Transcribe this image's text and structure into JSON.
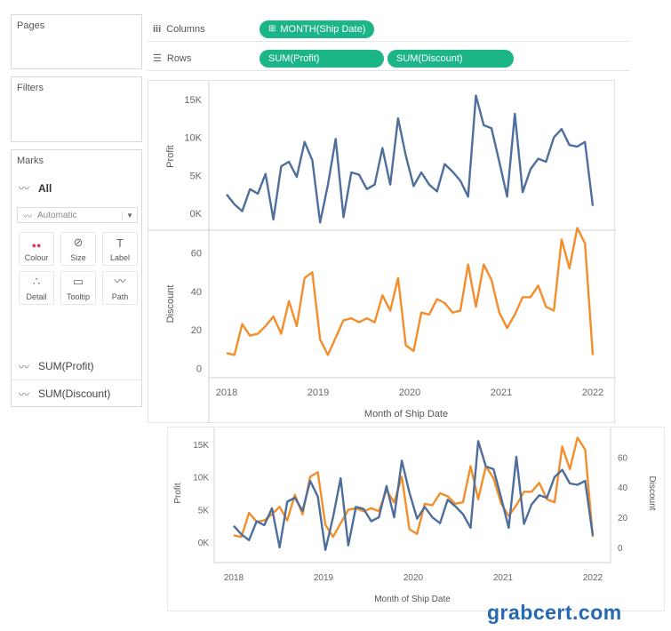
{
  "panels": {
    "pages": "Pages",
    "filters": "Filters",
    "marks": "Marks"
  },
  "shelves": {
    "columns_label": "Columns",
    "rows_label": "Rows",
    "columns_pills": [
      "MONTH(Ship Date)"
    ],
    "rows_pills": [
      "SUM(Profit)",
      "SUM(Discount)"
    ]
  },
  "marks_card": {
    "all_label": "All",
    "mark_type": "Automatic",
    "buttons": [
      {
        "label": "Colour",
        "icon": "colour-icon"
      },
      {
        "label": "Size",
        "icon": "size-icon"
      },
      {
        "label": "Label",
        "icon": "label-icon"
      },
      {
        "label": "Detail",
        "icon": "detail-icon"
      },
      {
        "label": "Tooltip",
        "icon": "tooltip-icon"
      },
      {
        "label": "Path",
        "icon": "path-icon"
      }
    ],
    "measures": [
      "SUM(Profit)",
      "SUM(Discount)"
    ]
  },
  "colors": {
    "profit": "#4e6e9c",
    "discount": "#f28e2b",
    "pill": "#1bb587",
    "watermark": "#2569b3"
  },
  "chart_data": [
    {
      "type": "line",
      "layout": "separate axes (stacked)",
      "xlabel": "Month of Ship Date",
      "x_ticks": [
        "2018",
        "2019",
        "2020",
        "2021",
        "2022"
      ],
      "series": [
        {
          "name": "Profit",
          "ylabel": "Profit",
          "y_ticks": [
            "0K",
            "5K",
            "10K",
            "15K"
          ],
          "ylim": [
            -1500,
            16500
          ],
          "values": [
            2500,
            1200,
            300,
            3200,
            2600,
            5200,
            -800,
            6200,
            6800,
            4800,
            9400,
            7000,
            -1200,
            3800,
            9800,
            -500,
            5400,
            5100,
            3200,
            3800,
            8600,
            3800,
            12500,
            7600,
            3600,
            5400,
            3800,
            2900,
            6500,
            5500,
            4300,
            2200,
            15500,
            11600,
            11200,
            6800,
            2200,
            13100,
            2800,
            5800,
            7200,
            6800,
            10000,
            11100,
            9000,
            8800,
            9400,
            1000
          ]
        },
        {
          "name": "Discount",
          "ylabel": "Discount",
          "y_ticks": [
            "0",
            "20",
            "40",
            "60"
          ],
          "ylim": [
            -3,
            70
          ],
          "values": [
            8,
            7,
            23,
            17,
            18,
            22,
            27,
            18,
            35,
            22,
            47,
            50,
            15,
            7,
            16,
            25,
            26,
            24,
            26,
            24,
            38,
            30,
            47,
            12,
            9,
            29,
            28,
            36,
            34,
            29,
            30,
            54,
            32,
            54,
            46,
            29,
            21,
            28,
            37,
            37,
            43,
            32,
            30,
            67,
            52,
            73,
            65,
            7
          ]
        }
      ]
    },
    {
      "type": "line",
      "layout": "dual axis",
      "xlabel": "Month of Ship Date",
      "x_ticks": [
        "2018",
        "2019",
        "2020",
        "2021",
        "2022"
      ],
      "series": [
        {
          "name": "Profit",
          "ylabel": "Profit",
          "axis": "left",
          "y_ticks": [
            "0K",
            "5K",
            "10K",
            "15K"
          ],
          "ylim": [
            -1500,
            16500
          ],
          "values": [
            2500,
            1200,
            300,
            3200,
            2600,
            5200,
            -800,
            6200,
            6800,
            4800,
            9400,
            7000,
            -1200,
            3800,
            9800,
            -500,
            5400,
            5100,
            3200,
            3800,
            8600,
            3800,
            12500,
            7600,
            3600,
            5400,
            3800,
            2900,
            6500,
            5500,
            4300,
            2200,
            15500,
            11600,
            11200,
            6800,
            2200,
            13100,
            2800,
            5800,
            7200,
            6800,
            10000,
            11100,
            9000,
            8800,
            9400,
            1000
          ]
        },
        {
          "name": "Discount",
          "ylabel": "Discount",
          "axis": "right",
          "y_ticks": [
            "0",
            "20",
            "40",
            "60"
          ],
          "ylim": [
            -3,
            75
          ],
          "values": [
            8,
            7,
            23,
            17,
            18,
            22,
            27,
            18,
            35,
            22,
            47,
            50,
            15,
            7,
            16,
            25,
            26,
            24,
            26,
            24,
            38,
            30,
            47,
            12,
            9,
            29,
            28,
            36,
            34,
            29,
            30,
            54,
            32,
            54,
            46,
            29,
            21,
            28,
            37,
            37,
            43,
            32,
            30,
            67,
            52,
            73,
            65,
            7
          ]
        }
      ]
    }
  ],
  "watermark": "grabcert.com"
}
